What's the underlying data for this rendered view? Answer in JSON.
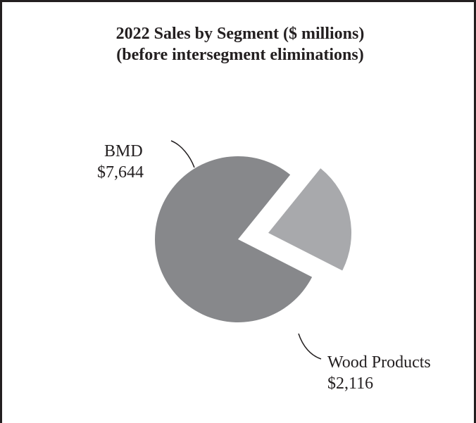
{
  "chart_data": {
    "type": "pie",
    "title": "2022 Sales by Segment ($ millions)",
    "subtitle": "(before intersegment eliminations)",
    "slices": [
      {
        "name": "BMD",
        "value": 7644,
        "value_label": "$7,644",
        "color": "#87888b"
      },
      {
        "name": "Wood Products",
        "value": 2116,
        "value_label": "$2,116",
        "color": "#a8a9ac",
        "exploded": true
      }
    ]
  }
}
